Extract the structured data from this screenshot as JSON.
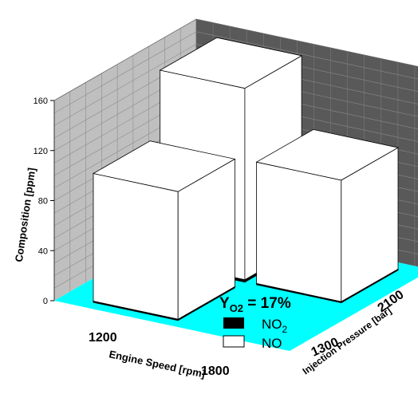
{
  "chart_data": {
    "type": "bar3d",
    "title": "",
    "annotation": {
      "main": "Y",
      "sub": "O2",
      "rest": " = 17%"
    },
    "zlabel": "Composition [ppm]",
    "xlabel": "Engine Speed [rpm]",
    "ylabel": "Injection Pressure [bar]",
    "zlim": [
      0,
      160
    ],
    "zticks": [
      "0",
      "40",
      "80",
      "120",
      "160"
    ],
    "x_categories": [
      "1200",
      "1800"
    ],
    "y_categories": [
      "1300",
      "2100"
    ],
    "legend": [
      {
        "name": "NO",
        "sub": "2",
        "color": "#000000"
      },
      {
        "name": "NO",
        "sub": "",
        "color": "#ffffff"
      }
    ],
    "bars": [
      {
        "engine_speed": "1200",
        "injection_pressure": "1300",
        "NO2": 1,
        "NO": 102
      },
      {
        "engine_speed": "1800",
        "injection_pressure": "1300",
        "NO2": 0,
        "NO": 0
      },
      {
        "engine_speed": "1200",
        "injection_pressure": "2100",
        "NO2": 2,
        "NO": 153
      },
      {
        "engine_speed": "1800",
        "injection_pressure": "2100",
        "NO2": 1,
        "NO": 97
      }
    ],
    "colors": {
      "floor": "#00ffff",
      "back_wall": "#595959",
      "left_wall": "#bfbfbf",
      "grid": "#8c8c8c"
    }
  }
}
